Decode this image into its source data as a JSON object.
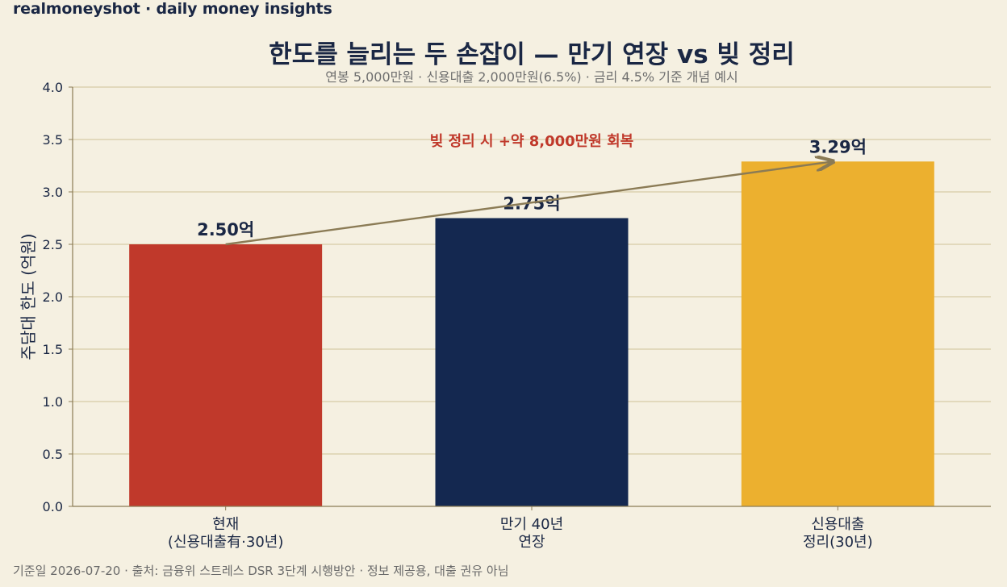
{
  "brand": "realmoneyshot · daily money insights",
  "footer": "기준일 2026-07-20 · 출처: 금융위 스트레스 DSR 3단계 시행방안 · 정보 제공용, 대출 권유 아님",
  "chart_data": {
    "type": "bar",
    "title": "한도를 늘리는 두 손잡이 — 만기 연장 vs 빚 정리",
    "subtitle": "연봉 5,000만원 · 신용대출 2,000만원(6.5%) · 금리 4.5% 기준 개념 예시",
    "xlabel": "",
    "ylabel": "주담대 한도 (억원)",
    "ylim": [
      0,
      4.0
    ],
    "yticks": [
      "0.0",
      "0.5",
      "1.0",
      "1.5",
      "2.0",
      "2.5",
      "3.0",
      "3.5",
      "4.0"
    ],
    "grid": true,
    "categories": [
      [
        "현재",
        "(신용대출有·30년)"
      ],
      [
        "만기 40년",
        "연장"
      ],
      [
        "신용대출",
        "정리(30년)"
      ]
    ],
    "values": [
      2.5,
      2.75,
      3.29
    ],
    "value_labels": [
      "2.50억",
      "2.75억",
      "3.29억"
    ],
    "colors": [
      "#c0392b",
      "#142850",
      "#ecb02f"
    ],
    "annotation": {
      "text": "빚 정리 시 +약 8,000만원 회복",
      "from_index": 0,
      "to_index": 2,
      "arrow_color": "#8b7b55"
    }
  }
}
